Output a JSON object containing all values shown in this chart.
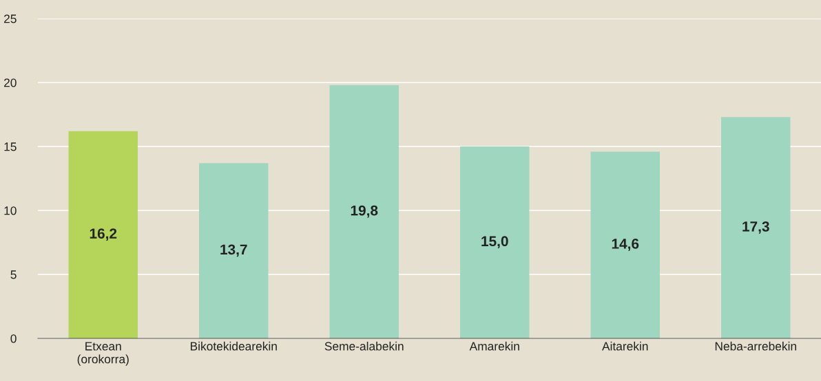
{
  "chart_data": {
    "type": "bar",
    "categories": [
      "Etxean\n(orokorra)",
      "Bikotekidearekin",
      "Seme-alabekin",
      "Amarekin",
      "Aitarekin",
      "Neba-arrebekin"
    ],
    "values": [
      16.2,
      13.7,
      19.8,
      15.0,
      14.6,
      17.3
    ],
    "value_labels": [
      "16,2",
      "13,7",
      "19,8",
      "15,0",
      "14,6",
      "17,3"
    ],
    "colors": [
      "#b5d55a",
      "#9fd6c0",
      "#9fd6c0",
      "#9fd6c0",
      "#9fd6c0",
      "#9fd6c0"
    ],
    "ylim": [
      0,
      25
    ],
    "yticks": [
      0,
      5,
      10,
      15,
      20,
      25
    ],
    "grid": "y"
  }
}
